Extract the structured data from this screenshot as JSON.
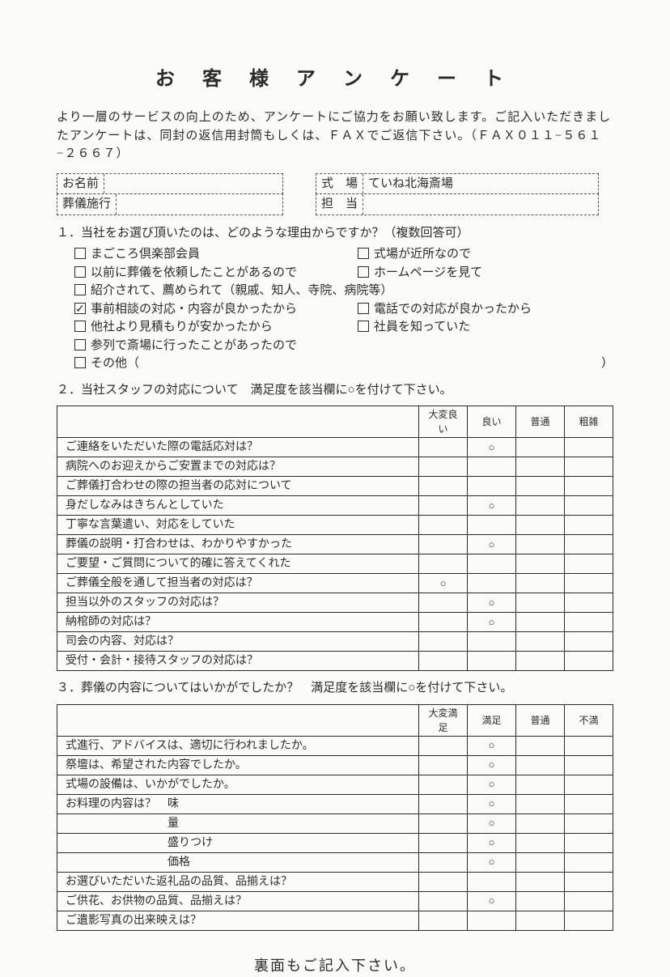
{
  "title": "お 客 様 ア ン ケ ー ト",
  "intro": "より一層のサービスの向上のため、アンケートにご協力をお願い致します。ご記入いただきましたアンケートは、同封の返信用封筒もしくは、ＦＡＸでご返信下さい。（ＦＡＸ０１１−５６１−２６６７）",
  "info": {
    "name_label": "お名前",
    "venue_label": "式　場",
    "venue_value": "ていね北海斎場",
    "exec_label": "葬儀施行",
    "staff_label": "担　当"
  },
  "q1": {
    "head": "１．当社をお選び頂いたのは、どのような理由からですか？（複数回答可）",
    "options_left": [
      {
        "label": "まごころ倶楽部会員",
        "checked": false
      },
      {
        "label": "以前に葬儀を依頼したことがあるので",
        "checked": false
      },
      {
        "label": "紹介されて、薦められて（親戚、知人、寺院、病院等）",
        "checked": false,
        "span": true
      },
      {
        "label": "事前相談の対応・内容が良かったから",
        "checked": true
      },
      {
        "label": "他社より見積もりが安かったから",
        "checked": false
      },
      {
        "label": "参列で斎場に行ったことがあったので",
        "checked": false,
        "span": true
      },
      {
        "label": "その他（",
        "checked": false,
        "span": true,
        "trail": "）"
      }
    ],
    "options_right": [
      {
        "label": "式場が近所なので",
        "checked": false,
        "row": 0
      },
      {
        "label": "ホームページを見て",
        "checked": false,
        "row": 1
      },
      {
        "label": "電話での対応が良かったから",
        "checked": false,
        "row": 3
      },
      {
        "label": "社員を知っていた",
        "checked": false,
        "row": 4
      }
    ]
  },
  "q2": {
    "head": "２．当社スタッフの対応について　満足度を該当欄に○を付けて下さい。",
    "cols": [
      "大変良い",
      "良い",
      "普通",
      "粗雑"
    ],
    "rows": [
      {
        "label": "ご連絡をいただいた際の電話応対は？",
        "marks": [
          "",
          "○",
          "",
          ""
        ],
        "dashed": false
      },
      {
        "label": "病院へのお迎えからご安置までの対応は？",
        "marks": [
          "",
          "",
          "",
          ""
        ],
        "dashed": false
      },
      {
        "label": "ご葬儀打合わせの際の担当者の応対について",
        "marks": [
          "",
          "",
          "",
          ""
        ],
        "dashed": false
      },
      {
        "label": "身だしなみはきちんとしていた",
        "marks": [
          "",
          "○",
          "",
          ""
        ],
        "dashed": true
      },
      {
        "label": "丁寧な言葉遣い、対応をしていた",
        "marks": [
          "",
          "",
          "",
          ""
        ],
        "dashed": true
      },
      {
        "label": "葬儀の説明・打合わせは、わかりやすかった",
        "marks": [
          "",
          "○",
          "",
          ""
        ],
        "dashed": true
      },
      {
        "label": "ご要望・ご質問について的確に答えてくれた",
        "marks": [
          "",
          "",
          "",
          ""
        ],
        "dashed": true
      },
      {
        "label": "ご葬儀全般を通して担当者の対応は？",
        "marks": [
          "○",
          "",
          "",
          ""
        ],
        "dashed": false
      },
      {
        "label": "担当以外のスタッフの対応は？",
        "marks": [
          "",
          "○",
          "",
          ""
        ],
        "dashed": false
      },
      {
        "label": "納棺師の対応は？",
        "marks": [
          "",
          "○",
          "",
          ""
        ],
        "dashed": false
      },
      {
        "label": "司会の内容、対応は？",
        "marks": [
          "",
          "",
          "",
          ""
        ],
        "dashed": false
      },
      {
        "label": "受付・会計・接待スタッフの対応は？",
        "marks": [
          "",
          "",
          "",
          ""
        ],
        "dashed": false
      }
    ]
  },
  "q3": {
    "head": "３．葬儀の内容についてはいかがでしたか？　満足度を該当欄に○を付けて下さい。",
    "cols": [
      "大変満足",
      "満足",
      "普通",
      "不満"
    ],
    "rows": [
      {
        "label": "式進行、アドバイスは、適切に行われましたか。",
        "marks": [
          "",
          "○",
          "",
          ""
        ],
        "dashed": false
      },
      {
        "label": "祭壇は、希望された内容でしたか。",
        "marks": [
          "",
          "○",
          "",
          ""
        ],
        "dashed": true
      },
      {
        "label": "式場の設備は、いかがでしたか。",
        "marks": [
          "",
          "○",
          "",
          ""
        ],
        "dashed": true
      },
      {
        "label": "お料理の内容は？　味",
        "marks": [
          "",
          "○",
          "",
          ""
        ],
        "dashed": false
      },
      {
        "label": "　　　　　　　　　量",
        "marks": [
          "",
          "○",
          "",
          ""
        ],
        "dashed": true
      },
      {
        "label": "　　　　　　　　　盛りつけ",
        "marks": [
          "",
          "○",
          "",
          ""
        ],
        "dashed": true
      },
      {
        "label": "　　　　　　　　　価格",
        "marks": [
          "",
          "○",
          "",
          ""
        ],
        "dashed": true
      },
      {
        "label": "お選びいただいた返礼品の品質、品揃えは？",
        "marks": [
          "",
          "",
          "",
          ""
        ],
        "dashed": false
      },
      {
        "label": "ご供花、お供物の品質、品揃えは？",
        "marks": [
          "",
          "○",
          "",
          ""
        ],
        "dashed": false
      },
      {
        "label": "ご遺影写真の出来映えは？",
        "marks": [
          "",
          "",
          "",
          ""
        ],
        "dashed": false
      }
    ]
  },
  "footer": "裏面もご記入下さい。"
}
